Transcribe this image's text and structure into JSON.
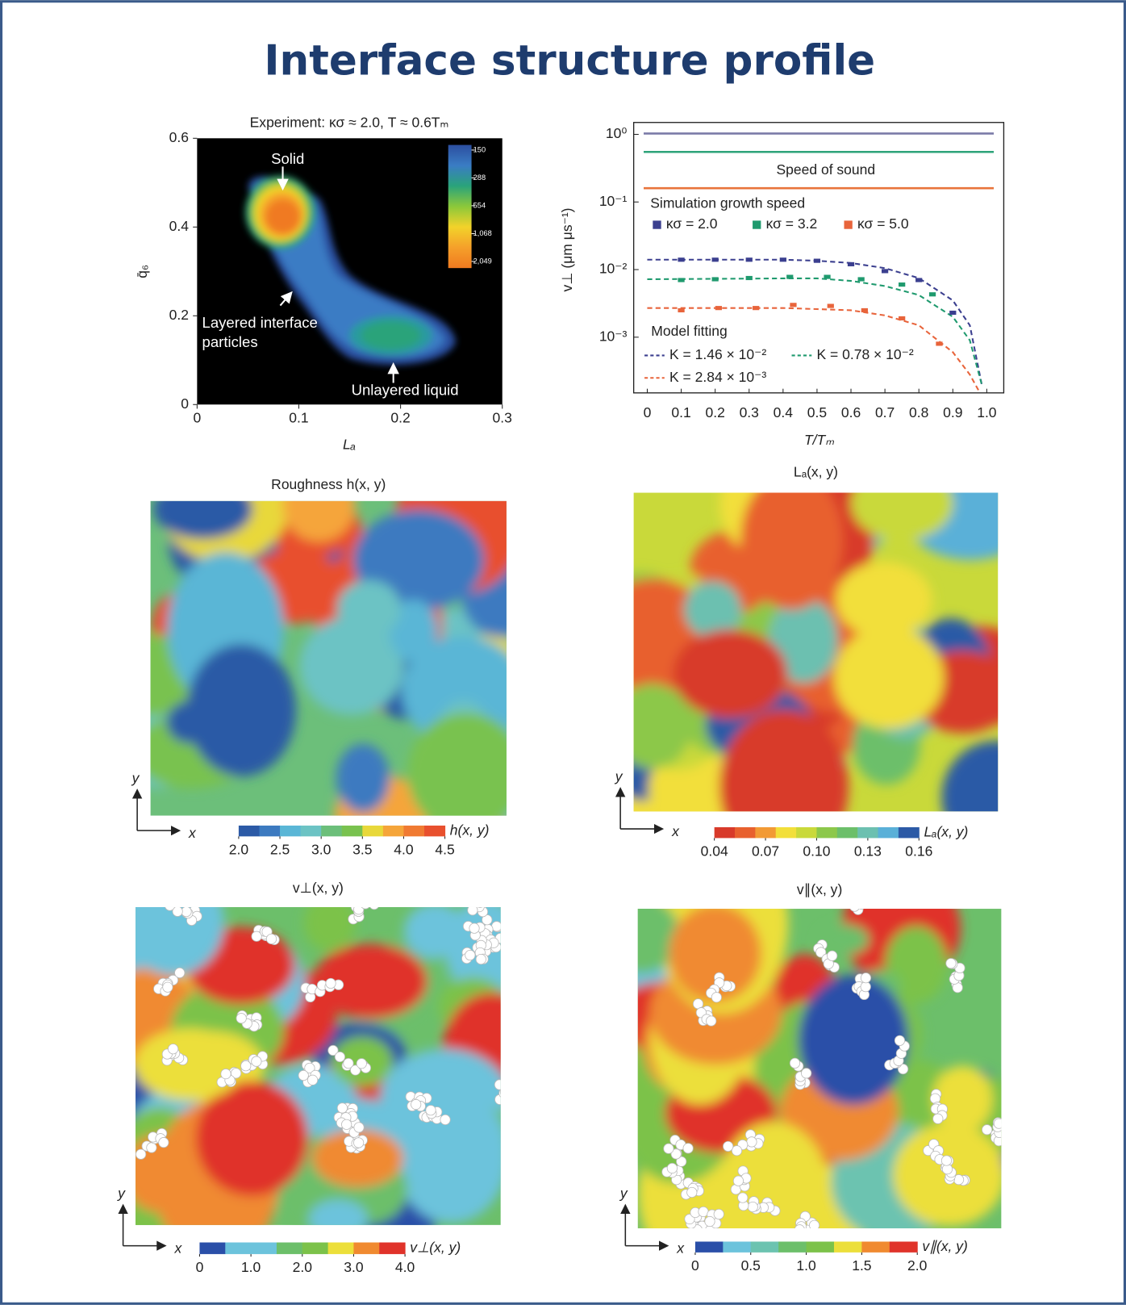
{
  "title": "Interface structure profile",
  "chart_data": [
    {
      "type": "density",
      "title": "Experiment: κσ ≈ 2.0, T ≈ 0.6Tₘ",
      "x_label": "Lₐ",
      "y_label": "q̄₆",
      "xlim": [
        0,
        0.3
      ],
      "xticks": [
        0,
        0.1,
        0.2,
        0.3
      ],
      "ylim": [
        0,
        0.6
      ],
      "yticks": [
        0,
        0.2,
        0.4,
        0.6
      ],
      "colorbar_lim": [
        133,
        2395
      ],
      "colorbar_log": true,
      "colorbar_ticks": [
        150,
        288,
        554,
        {
          "value": 1068,
          "label": "1,068"
        },
        {
          "value": 2049,
          "label": "2,049"
        }
      ],
      "colors": [
        "#2c4fa0",
        "#3a7cc4",
        "#2aa37a",
        "#8cc83a",
        "#f2d22a",
        "#f5a02a",
        "#f07a20"
      ],
      "annotations": [
        "Solid",
        "Layered interface",
        "particles",
        "Unlayered liquid"
      ]
    },
    {
      "type": "line",
      "log_y": true,
      "y_label": "v⊥ (μm μs⁻¹)",
      "x_label": "T/Tₘ",
      "xlim": [
        -0.04,
        1.05
      ],
      "xticks": [
        0,
        0.1,
        0.2,
        0.3,
        0.4,
        0.5,
        0.6,
        0.7,
        0.8,
        0.9,
        {
          "value": 1,
          "label": "1.0"
        }
      ],
      "ylim": [
        0.00015,
        1.5
      ],
      "yticks": [
        {
          "value": 1,
          "label": "10⁰"
        },
        {
          "value": 0.1,
          "label": "10⁻¹"
        },
        {
          "value": 0.01,
          "label": "10⁻²"
        },
        {
          "value": 0.001,
          "label": "10⁻³"
        }
      ],
      "reference_label": "Speed of sound",
      "reference_values": [
        1.03,
        0.55,
        0.16
      ],
      "reference_colors": [
        "#7b7ba8",
        "#2ea37a",
        "#e8743b"
      ],
      "points_title": "Simulation growth speed",
      "series": [
        {
          "name": "κσ = 2.0",
          "color": "#3b3f8f",
          "x": [
            0.1,
            0.2,
            0.3,
            0.4,
            0.5,
            0.6,
            0.7,
            0.8,
            0.9
          ],
          "values": [
            0.014,
            0.014,
            0.014,
            0.014,
            0.0135,
            0.012,
            0.0095,
            0.007,
            0.0023
          ]
        },
        {
          "name": "κσ = 3.2",
          "color": "#1f9a6e",
          "x": [
            0.1,
            0.2,
            0.3,
            0.42,
            0.53,
            0.63,
            0.75,
            0.84
          ],
          "values": [
            0.007,
            0.0072,
            0.0075,
            0.0078,
            0.0078,
            0.0072,
            0.006,
            0.0043
          ]
        },
        {
          "name": "κσ = 5.0",
          "color": "#e8643b",
          "x": [
            0.1,
            0.21,
            0.32,
            0.43,
            0.54,
            0.64,
            0.75,
            0.86
          ],
          "values": [
            0.0025,
            0.0027,
            0.0027,
            0.003,
            0.0029,
            0.0025,
            0.0019,
            0.0008
          ]
        }
      ],
      "fits_title": "Model fitting",
      "fits": [
        {
          "name": "K = 1.46 × 10⁻²",
          "color": "#3b3f8f",
          "x": [
            0,
            0.2,
            0.4,
            0.5,
            0.6,
            0.7,
            0.8,
            0.9,
            0.95,
            0.985
          ],
          "values": [
            0.014,
            0.014,
            0.014,
            0.0135,
            0.0125,
            0.0105,
            0.0075,
            0.0035,
            0.0015,
            0.0002
          ]
        },
        {
          "name": "K = 0.78 × 10⁻²",
          "color": "#1f9a6e",
          "x": [
            0,
            0.2,
            0.4,
            0.5,
            0.6,
            0.7,
            0.8,
            0.9,
            0.95,
            0.985
          ],
          "values": [
            0.0072,
            0.0073,
            0.0074,
            0.0074,
            0.0068,
            0.0057,
            0.0042,
            0.002,
            0.0009,
            0.0002
          ]
        },
        {
          "name": "K = 2.84 × 10⁻³",
          "color": "#e8643b",
          "x": [
            0,
            0.2,
            0.4,
            0.5,
            0.6,
            0.7,
            0.8,
            0.9,
            0.95,
            0.98
          ],
          "values": [
            0.0027,
            0.0027,
            0.0027,
            0.0026,
            0.0025,
            0.0021,
            0.0015,
            0.0006,
            0.00028,
            0.00015
          ]
        }
      ]
    },
    {
      "type": "map",
      "title": "Roughness h(x, y)",
      "colorbar_label": "h(x, y)",
      "x_label": "x",
      "y_label": "y",
      "colors": [
        "#2c5aa6",
        "#3c7ac0",
        "#5ab6d6",
        "#6cc3c4",
        "#6cbf7a",
        "#79c24f",
        "#e8d83a",
        "#f5a53a",
        "#f07a32",
        "#e8502e"
      ],
      "clim": [
        2,
        4.5
      ],
      "cticks": [
        {
          "value": 2,
          "label": "2.0"
        },
        2.5,
        {
          "value": 3,
          "label": "3.0"
        },
        3.5,
        {
          "value": 4,
          "label": "4.0"
        },
        4.5
      ],
      "particles": false
    },
    {
      "type": "map",
      "title": "Lₐ(x, y)",
      "colorbar_label": "Lₐ(x, y)",
      "x_label": "x",
      "y_label": "y",
      "colors": [
        "#d83a2a",
        "#e8602e",
        "#f29a35",
        "#f2df3a",
        "#c9d93a",
        "#8cc84a",
        "#6cbf6a",
        "#6cc0b0",
        "#5ab0d8",
        "#2c5aa6"
      ],
      "clim": [
        0.04,
        0.16
      ],
      "cticks": [
        0.04,
        0.07,
        {
          "value": 0.1,
          "label": "0.10"
        },
        0.13,
        0.16
      ],
      "particles": false
    },
    {
      "type": "map",
      "title": "v⊥(x, y)",
      "colorbar_label": "v⊥(x, y)",
      "x_label": "x",
      "y_label": "y",
      "colors": [
        "#2a4fa8",
        "#6cc3dc",
        "#6cc3dc",
        "#6cbf6a",
        "#7cc24a",
        "#ecdf3a",
        "#f08a30",
        "#e0332a"
      ],
      "clim": [
        0,
        4
      ],
      "cticks": [
        0,
        {
          "value": 1,
          "label": "1.0"
        },
        {
          "value": 2,
          "label": "2.0"
        },
        {
          "value": 3,
          "label": "3.0"
        },
        {
          "value": 4,
          "label": "4.0"
        }
      ],
      "particles": true
    },
    {
      "type": "map",
      "title": "v∥(x, y)",
      "colorbar_label": "v∥(x, y)",
      "x_label": "x",
      "y_label": "y",
      "colors": [
        "#2a4fa8",
        "#6cc3dc",
        "#6cc3b0",
        "#6cbf6a",
        "#7cc24a",
        "#ecdf3a",
        "#f08a30",
        "#e0332a"
      ],
      "clim": [
        0,
        2
      ],
      "cticks": [
        0,
        0.5,
        {
          "value": 1,
          "label": "1.0"
        },
        1.5,
        {
          "value": 2,
          "label": "2.0"
        }
      ],
      "particles": true
    }
  ]
}
